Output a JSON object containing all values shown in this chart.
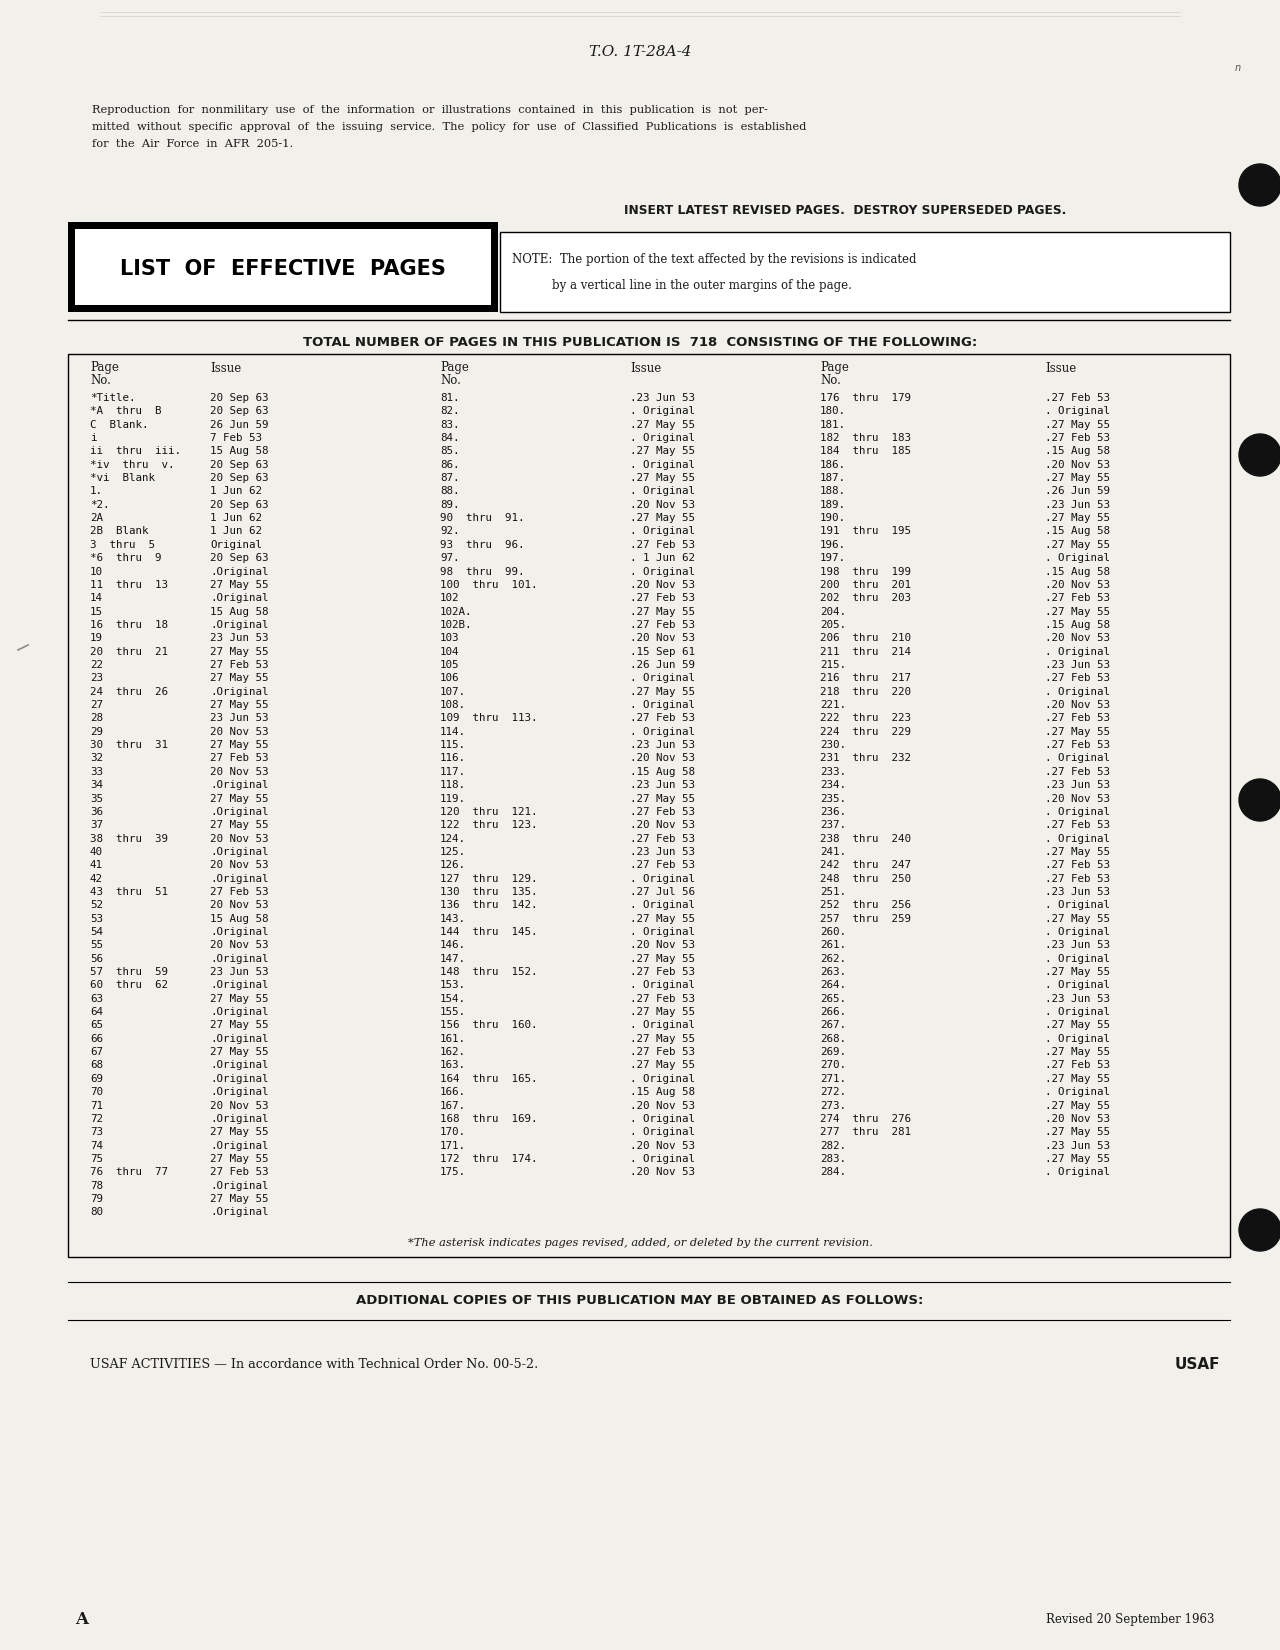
{
  "to_number": "T.O. 1T-28A-4",
  "reproduction_text": "Reproduction  for  nonmilitary  use  of  the  information  or  illustrations  contained  in  this  publication  is  not  per-\nmitted  without  specific  approval  of  the  issuing  service.  The  policy  for  use  of  Classified  Publications  is  established\nfor  the  Air  Force  in  AFR  205-1.",
  "insert_text": "INSERT LATEST REVISED PAGES.  DESTROY SUPERSEDED PAGES.",
  "list_title": "LIST  OF  EFFECTIVE  PAGES",
  "note_line1": "NOTE:  The portion of the text affected by the revisions is indicated",
  "note_line2": "by a vertical line in the outer margins of the page.",
  "total_pages_text": "TOTAL NUMBER OF PAGES IN THIS PUBLICATION IS  718  CONSISTING OF THE FOLLOWING:",
  "col1_data": [
    [
      "*Title.",
      "20 Sep 63"
    ],
    [
      "*A  thru  B",
      "20 Sep 63"
    ],
    [
      "C  Blank.",
      "26 Jun 59"
    ],
    [
      "i",
      "7 Feb 53"
    ],
    [
      "ii  thru  iii.",
      "15 Aug 58"
    ],
    [
      "*iv  thru  v.",
      "20 Sep 63"
    ],
    [
      "*vi  Blank",
      "20 Sep 63"
    ],
    [
      "1.",
      "1 Jun 62"
    ],
    [
      "*2.",
      "20 Sep 63"
    ],
    [
      "2A",
      "1 Jun 62"
    ],
    [
      "2B  Blank",
      "1 Jun 62"
    ],
    [
      "3  thru  5",
      "Original"
    ],
    [
      "*6  thru  9",
      "20 Sep 63"
    ],
    [
      "10",
      ".Original"
    ],
    [
      "11  thru  13",
      "27 May 55"
    ],
    [
      "14",
      ".Original"
    ],
    [
      "15",
      "15 Aug 58"
    ],
    [
      "16  thru  18",
      ".Original"
    ],
    [
      "19",
      "23 Jun 53"
    ],
    [
      "20  thru  21",
      "27 May 55"
    ],
    [
      "22",
      "27 Feb 53"
    ],
    [
      "23",
      "27 May 55"
    ],
    [
      "24  thru  26",
      ".Original"
    ],
    [
      "27",
      "27 May 55"
    ],
    [
      "28",
      "23 Jun 53"
    ],
    [
      "29",
      "20 Nov 53"
    ],
    [
      "30  thru  31",
      "27 May 55"
    ],
    [
      "32",
      "27 Feb 53"
    ],
    [
      "33",
      "20 Nov 53"
    ],
    [
      "34",
      ".Original"
    ],
    [
      "35",
      "27 May 55"
    ],
    [
      "36",
      ".Original"
    ],
    [
      "37",
      "27 May 55"
    ],
    [
      "38  thru  39",
      "20 Nov 53"
    ],
    [
      "40",
      ".Original"
    ],
    [
      "41",
      "20 Nov 53"
    ],
    [
      "42",
      ".Original"
    ],
    [
      "43  thru  51",
      "27 Feb 53"
    ],
    [
      "52",
      "20 Nov 53"
    ],
    [
      "53",
      "15 Aug 58"
    ],
    [
      "54",
      ".Original"
    ],
    [
      "55",
      "20 Nov 53"
    ],
    [
      "56",
      ".Original"
    ],
    [
      "57  thru  59",
      "23 Jun 53"
    ],
    [
      "60  thru  62",
      ".Original"
    ],
    [
      "63",
      "27 May 55"
    ],
    [
      "64",
      ".Original"
    ],
    [
      "65",
      "27 May 55"
    ],
    [
      "66",
      ".Original"
    ],
    [
      "67",
      "27 May 55"
    ],
    [
      "68",
      ".Original"
    ],
    [
      "69",
      ".Original"
    ],
    [
      "70",
      ".Original"
    ],
    [
      "71",
      "20 Nov 53"
    ],
    [
      "72",
      ".Original"
    ],
    [
      "73",
      "27 May 55"
    ],
    [
      "74",
      ".Original"
    ],
    [
      "75",
      "27 May 55"
    ],
    [
      "76  thru  77",
      "27 Feb 53"
    ],
    [
      "78",
      ".Original"
    ],
    [
      "79",
      "27 May 55"
    ],
    [
      "80",
      ".Original"
    ]
  ],
  "col2_data": [
    [
      "81.",
      ".23 Jun 53"
    ],
    [
      "82.",
      ". Original"
    ],
    [
      "83.",
      ".27 May 55"
    ],
    [
      "84.",
      ". Original"
    ],
    [
      "85.",
      ".27 May 55"
    ],
    [
      "86.",
      ". Original"
    ],
    [
      "87.",
      ".27 May 55"
    ],
    [
      "88.",
      ". Original"
    ],
    [
      "89.",
      ".20 Nov 53"
    ],
    [
      "90  thru  91.",
      ".27 May 55"
    ],
    [
      "92.",
      ". Original"
    ],
    [
      "93  thru  96.",
      ".27 Feb 53"
    ],
    [
      "97.",
      ". 1 Jun 62"
    ],
    [
      "98  thru  99.",
      ". Original"
    ],
    [
      "100  thru  101.",
      ".20 Nov 53"
    ],
    [
      "102",
      ".27 Feb 53"
    ],
    [
      "102A.",
      ".27 May 55"
    ],
    [
      "102B.",
      ".27 Feb 53"
    ],
    [
      "103",
      ".20 Nov 53"
    ],
    [
      "104",
      ".15 Sep 61"
    ],
    [
      "105",
      ".26 Jun 59"
    ],
    [
      "106",
      ". Original"
    ],
    [
      "107.",
      ".27 May 55"
    ],
    [
      "108.",
      ". Original"
    ],
    [
      "109  thru  113.",
      ".27 Feb 53"
    ],
    [
      "114.",
      ". Original"
    ],
    [
      "115.",
      ".23 Jun 53"
    ],
    [
      "116.",
      ".20 Nov 53"
    ],
    [
      "117.",
      ".15 Aug 58"
    ],
    [
      "118.",
      ".23 Jun 53"
    ],
    [
      "119.",
      ".27 May 55"
    ],
    [
      "120  thru  121.",
      ".27 Feb 53"
    ],
    [
      "122  thru  123.",
      ".20 Nov 53"
    ],
    [
      "124.",
      ".27 Feb 53"
    ],
    [
      "125.",
      ".23 Jun 53"
    ],
    [
      "126.",
      ".27 Feb 53"
    ],
    [
      "127  thru  129.",
      ". Original"
    ],
    [
      "130  thru  135.",
      ".27 Jul 56"
    ],
    [
      "136  thru  142.",
      ". Original"
    ],
    [
      "143.",
      ".27 May 55"
    ],
    [
      "144  thru  145.",
      ". Original"
    ],
    [
      "146.",
      ".20 Nov 53"
    ],
    [
      "147.",
      ".27 May 55"
    ],
    [
      "148  thru  152.",
      ".27 Feb 53"
    ],
    [
      "153.",
      ". Original"
    ],
    [
      "154.",
      ".27 Feb 53"
    ],
    [
      "155.",
      ".27 May 55"
    ],
    [
      "156  thru  160.",
      ". Original"
    ],
    [
      "161.",
      ".27 May 55"
    ],
    [
      "162.",
      ".27 Feb 53"
    ],
    [
      "163.",
      ".27 May 55"
    ],
    [
      "164  thru  165.",
      ". Original"
    ],
    [
      "166.",
      ".15 Aug 58"
    ],
    [
      "167.",
      ".20 Nov 53"
    ],
    [
      "168  thru  169.",
      ". Original"
    ],
    [
      "170.",
      ". Original"
    ],
    [
      "171.",
      ".20 Nov 53"
    ],
    [
      "172  thru  174.",
      ". Original"
    ],
    [
      "175.",
      ".20 Nov 53"
    ]
  ],
  "col3_data": [
    [
      "176  thru  179",
      ".27 Feb 53"
    ],
    [
      "180.",
      ". Original"
    ],
    [
      "181.",
      ".27 May 55"
    ],
    [
      "182  thru  183",
      ".27 Feb 53"
    ],
    [
      "184  thru  185",
      ".15 Aug 58"
    ],
    [
      "186.",
      ".20 Nov 53"
    ],
    [
      "187.",
      ".27 May 55"
    ],
    [
      "188.",
      ".26 Jun 59"
    ],
    [
      "189.",
      ".23 Jun 53"
    ],
    [
      "190.",
      ".27 May 55"
    ],
    [
      "191  thru  195",
      ".15 Aug 58"
    ],
    [
      "196.",
      ".27 May 55"
    ],
    [
      "197.",
      ". Original"
    ],
    [
      "198  thru  199",
      ".15 Aug 58"
    ],
    [
      "200  thru  201",
      ".20 Nov 53"
    ],
    [
      "202  thru  203",
      ".27 Feb 53"
    ],
    [
      "204.",
      ".27 May 55"
    ],
    [
      "205.",
      ".15 Aug 58"
    ],
    [
      "206  thru  210",
      ".20 Nov 53"
    ],
    [
      "211  thru  214",
      ". Original"
    ],
    [
      "215.",
      ".23 Jun 53"
    ],
    [
      "216  thru  217",
      ".27 Feb 53"
    ],
    [
      "218  thru  220",
      ". Original"
    ],
    [
      "221.",
      ".20 Nov 53"
    ],
    [
      "222  thru  223",
      ".27 Feb 53"
    ],
    [
      "224  thru  229",
      ".27 May 55"
    ],
    [
      "230.",
      ".27 Feb 53"
    ],
    [
      "231  thru  232",
      ". Original"
    ],
    [
      "233.",
      ".27 Feb 53"
    ],
    [
      "234.",
      ".23 Jun 53"
    ],
    [
      "235.",
      ".20 Nov 53"
    ],
    [
      "236.",
      ". Original"
    ],
    [
      "237.",
      ".27 Feb 53"
    ],
    [
      "238  thru  240",
      ". Original"
    ],
    [
      "241.",
      ".27 May 55"
    ],
    [
      "242  thru  247",
      ".27 Feb 53"
    ],
    [
      "248  thru  250",
      ".27 Feb 53"
    ],
    [
      "251.",
      ".23 Jun 53"
    ],
    [
      "252  thru  256",
      ". Original"
    ],
    [
      "257  thru  259",
      ".27 May 55"
    ],
    [
      "260.",
      ". Original"
    ],
    [
      "261.",
      ".23 Jun 53"
    ],
    [
      "262.",
      ". Original"
    ],
    [
      "263.",
      ".27 May 55"
    ],
    [
      "264.",
      ". Original"
    ],
    [
      "265.",
      ".23 Jun 53"
    ],
    [
      "266.",
      ". Original"
    ],
    [
      "267.",
      ".27 May 55"
    ],
    [
      "268.",
      ". Original"
    ],
    [
      "269.",
      ".27 May 55"
    ],
    [
      "270.",
      ".27 Feb 53"
    ],
    [
      "271.",
      ".27 May 55"
    ],
    [
      "272.",
      ". Original"
    ],
    [
      "273.",
      ".27 May 55"
    ],
    [
      "274  thru  276",
      ".20 Nov 53"
    ],
    [
      "277  thru  281",
      ".27 May 55"
    ],
    [
      "282.",
      ".23 Jun 53"
    ],
    [
      "283.",
      ".27 May 55"
    ],
    [
      "284.",
      ". Original"
    ]
  ],
  "asterisk_note": "*The asterisk indicates pages revised, added, or deleted by the current revision.",
  "additional_copies": "ADDITIONAL COPIES OF THIS PUBLICATION MAY BE OBTAINED AS FOLLOWS:",
  "usaf_activities": "USAF ACTIVITIES — In accordance with Technical Order No. 00-5-2.",
  "usaf_label": "USAF",
  "page_label": "A",
  "revised_text": "Revised 20 September 1963",
  "bg_color": "#f2f0eb",
  "text_color": "#1a1a1a",
  "circle_color": "#111111"
}
